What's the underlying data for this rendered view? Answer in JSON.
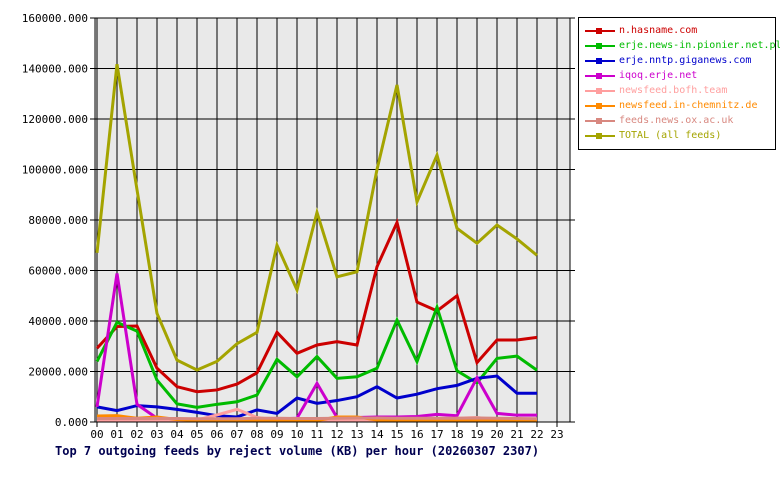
{
  "title": "Top 7 outgoing feeds by reject volume (KB) per hour (20260307 2307)",
  "colors": {
    "page_bg": "#ffffff",
    "plot_bg": "#e9e9e9",
    "grid": "#000000",
    "axis_text": "#000000",
    "title_text": "#000050",
    "legend_border": "#000000"
  },
  "chart_data": {
    "type": "line",
    "title": "Top 7 outgoing feeds by reject volume (KB) per hour (20260307 2307)",
    "xlabel": "",
    "ylabel": "",
    "x": [
      "00",
      "01",
      "02",
      "03",
      "04",
      "05",
      "06",
      "07",
      "08",
      "09",
      "10",
      "11",
      "12",
      "13",
      "14",
      "15",
      "16",
      "17",
      "18",
      "19",
      "20",
      "21",
      "22",
      "23"
    ],
    "ylim": [
      0,
      160000
    ],
    "ytick_step": 20000,
    "grid": true,
    "legend_position": "top-right",
    "series": [
      {
        "name": "n.hasname.com",
        "color": "#cc0000",
        "values": [
          29200,
          37800,
          38000,
          21300,
          14000,
          12000,
          12700,
          15000,
          19500,
          35500,
          27200,
          30500,
          31800,
          30500,
          61500,
          79000,
          47500,
          44000,
          50000,
          23500,
          32500,
          32500,
          33500
        ]
      },
      {
        "name": "erje.news-in.pionier.net.pl",
        "color": "#00bb00",
        "values": [
          24000,
          39500,
          36000,
          16600,
          7200,
          5800,
          7000,
          8000,
          10700,
          24800,
          17900,
          25900,
          17300,
          17900,
          21300,
          40400,
          23900,
          45500,
          20300,
          15500,
          25200,
          26100,
          20500
        ]
      },
      {
        "name": "erje.nntp.giganews.com",
        "color": "#0000cc",
        "values": [
          6000,
          4500,
          6500,
          6000,
          5000,
          3800,
          2500,
          2000,
          4800,
          3400,
          9500,
          7400,
          8500,
          10000,
          14000,
          9500,
          11000,
          13200,
          14500,
          17300,
          18200,
          11400,
          11400
        ]
      },
      {
        "name": "iqoq.erje.net",
        "color": "#cc00cc",
        "values": [
          6000,
          58800,
          7000,
          1500,
          1200,
          1200,
          1200,
          1200,
          1200,
          1200,
          1500,
          15300,
          1800,
          1800,
          2000,
          2000,
          2200,
          3000,
          2500,
          17500,
          3400,
          2700,
          2700
        ]
      },
      {
        "name": "newsfeed.bofh.team",
        "color": "#ff9f9f",
        "values": [
          800,
          800,
          800,
          800,
          800,
          800,
          2800,
          5000,
          1800,
          800,
          800,
          800,
          800,
          800,
          800,
          800,
          800,
          800,
          1500,
          1800,
          800,
          800,
          800
        ]
      },
      {
        "name": "newsfeed.in-chemnitz.de",
        "color": "#ff8a00",
        "values": [
          2400,
          2500,
          1500,
          2000,
          1000,
          600,
          600,
          600,
          600,
          600,
          600,
          600,
          2000,
          2000,
          800,
          600,
          600,
          600,
          600,
          600,
          600,
          600,
          600
        ]
      },
      {
        "name": "feeds.news.ox.ac.uk",
        "color": "#d88880",
        "values": [
          1400,
          1400,
          1400,
          1400,
          1400,
          1300,
          1300,
          1300,
          1500,
          1500,
          1400,
          1400,
          1500,
          1600,
          1600,
          1500,
          1500,
          1500,
          1500,
          1600,
          1500,
          1400,
          1300
        ]
      },
      {
        "name": "TOTAL (all feeds)",
        "color": "#a4a400",
        "values": [
          67000,
          141700,
          92000,
          43000,
          24500,
          20600,
          24000,
          31000,
          35500,
          70000,
          52300,
          83000,
          57500,
          59500,
          100000,
          133500,
          87200,
          105700,
          76700,
          70800,
          78000,
          72500,
          66000
        ]
      }
    ]
  }
}
